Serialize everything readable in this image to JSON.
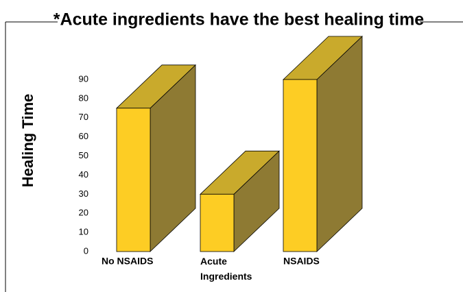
{
  "chart_data": {
    "type": "bar3d",
    "title": "*Acute ingredients have the best healing time",
    "y_label": "Healing Time",
    "categories": [
      "No NSAIDS",
      "Acute Ingredients",
      "NSAIDS"
    ],
    "values": [
      75,
      30,
      90
    ],
    "color": "#fdcd24",
    "ylim": [
      0,
      90
    ],
    "yticks": [
      0,
      10,
      20,
      30,
      40,
      50,
      60,
      70,
      80,
      90
    ],
    "grid": false
  }
}
